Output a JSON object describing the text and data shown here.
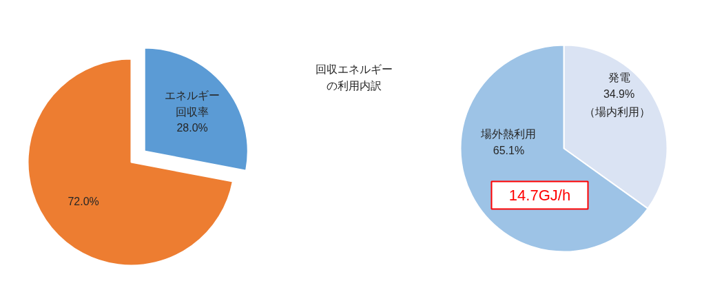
{
  "chart_data": [
    {
      "type": "pie",
      "categories": [
        "エネルギー回収率",
        null
      ],
      "values": [
        28.0,
        72.0
      ],
      "colors": [
        "#5b9bd5",
        "#ed7d31"
      ],
      "value_labels": [
        "28.0%",
        "72.0%"
      ]
    },
    {
      "type": "pie",
      "categories": [
        "発電",
        "場外熱利用"
      ],
      "values": [
        34.9,
        65.1
      ],
      "colors": [
        "#dae3f3",
        "#9dc3e6"
      ],
      "value_labels": [
        "34.9%",
        "65.1%"
      ],
      "annotations": [
        "（場内利用）",
        "14.7GJ/h",
        "回収エネルギーの利用内訳"
      ]
    }
  ]
}
